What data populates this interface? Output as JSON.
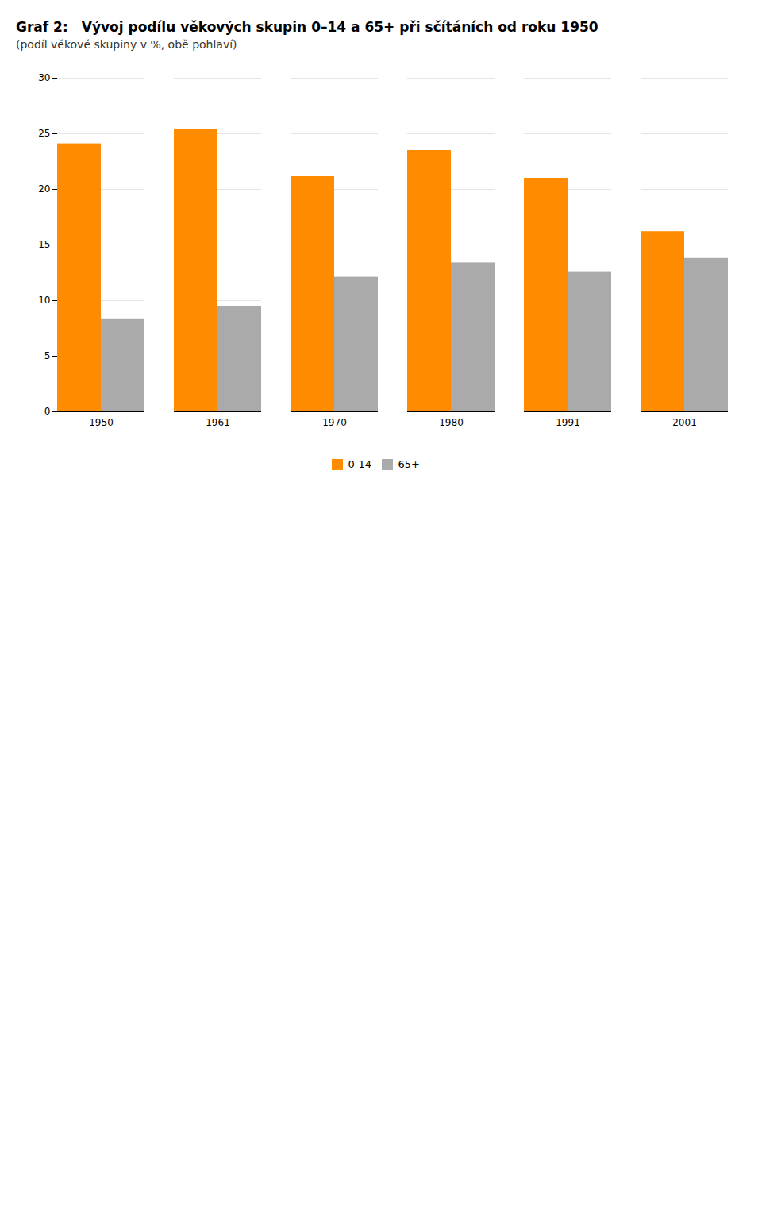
{
  "chart_data": {
    "type": "bar",
    "title": "Graf 2: Vývoj podílu věkových skupin 0–14 a 65+ při sčítáních od roku 1950",
    "subtitle": "(podíl věkové skupiny v %, obě pohlaví)",
    "categories": [
      "1950",
      "1961",
      "1970",
      "1980",
      "1991",
      "2001"
    ],
    "series": [
      {
        "name": "0-14",
        "color": "#FF8C00",
        "values": [
          24.1,
          25.4,
          21.2,
          23.5,
          21.0,
          16.2
        ]
      },
      {
        "name": "65+",
        "color": "#AAAAAA",
        "values": [
          8.3,
          9.5,
          12.1,
          13.4,
          12.6,
          13.8
        ]
      }
    ],
    "ylim": [
      0,
      30
    ],
    "yticks": [
      0,
      5,
      10,
      15,
      20,
      25,
      30
    ],
    "grid": true,
    "legend": "bottom"
  }
}
